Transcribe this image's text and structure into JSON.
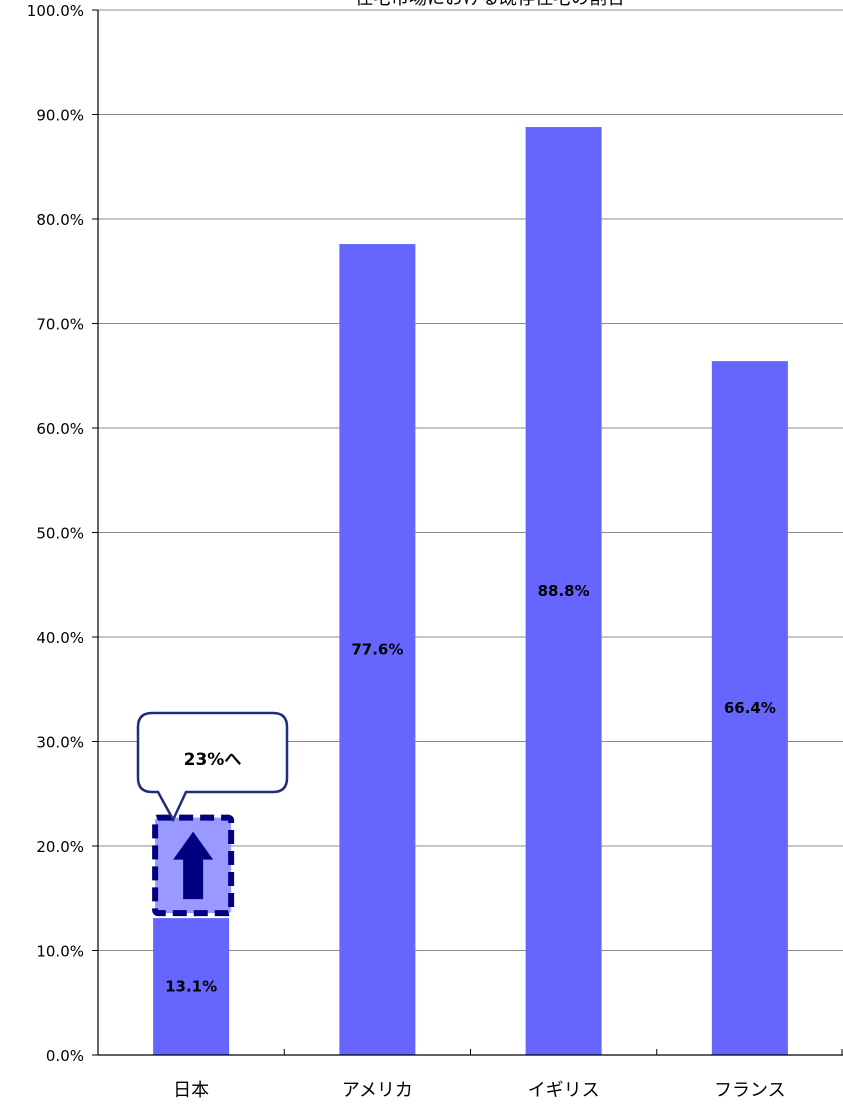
{
  "chart_data": {
    "type": "bar",
    "title": "住宅市場における既存住宅の割合",
    "categories": [
      "日本",
      "アメリカ",
      "イギリス",
      "フランス"
    ],
    "values": [
      13.1,
      77.6,
      88.8,
      66.4
    ],
    "value_labels": [
      "13.1%",
      "77.6%",
      "88.8%",
      "66.4%"
    ],
    "ylim": [
      0,
      100
    ],
    "y_ticks": [
      "0.0%",
      "10.0%",
      "20.0%",
      "30.0%",
      "40.0%",
      "50.0%",
      "60.0%",
      "70.0%",
      "80.0%",
      "90.0%",
      "100.0%"
    ],
    "grid": true,
    "bar_color": "#6666ff",
    "annotation": {
      "text": "23%へ",
      "category": "日本",
      "from": 13.1,
      "to": 23,
      "box_fill": "#9999ff",
      "border_color": "#000080",
      "arrow_color": "#000080"
    }
  }
}
